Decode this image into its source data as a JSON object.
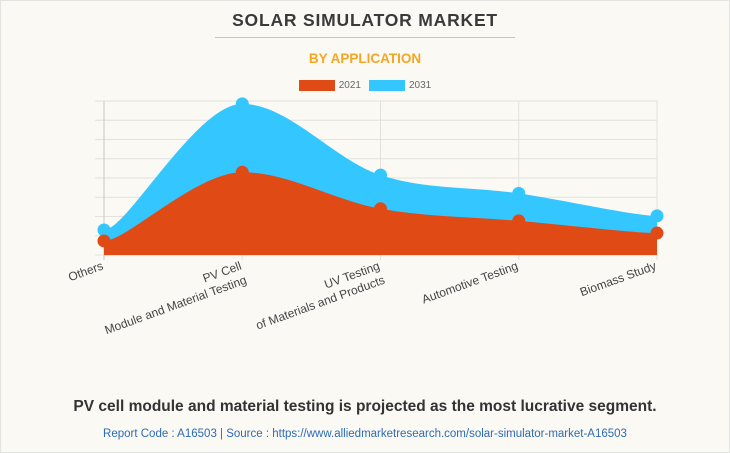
{
  "header": {
    "title": "SOLAR SIMULATOR MARKET",
    "subtitle": "BY APPLICATION"
  },
  "legend": [
    {
      "label": "2021",
      "color": "#e04a14"
    },
    {
      "label": "2031",
      "color": "#33c6ff"
    }
  ],
  "chart_data": {
    "type": "area",
    "title": "SOLAR SIMULATOR MARKET",
    "subtitle": "BY APPLICATION",
    "xlabel": "",
    "ylabel": "",
    "categories": [
      [
        "Others"
      ],
      [
        "PV Cell",
        "Module and Material Testing"
      ],
      [
        "UV Testing",
        "of Materials and Products"
      ],
      [
        "Automotive Testing"
      ],
      [
        "Biomass Study"
      ]
    ],
    "series": [
      {
        "name": "2031",
        "color": "#33c6ff",
        "values": [
          1.3,
          7.85,
          4.15,
          3.2,
          2.03
        ]
      },
      {
        "name": "2021",
        "color": "#e04a14",
        "values": [
          0.73,
          4.3,
          2.4,
          1.77,
          1.14
        ]
      }
    ],
    "ylim": [
      0,
      8
    ],
    "y_gridlines": 8,
    "y_tick_labels_visible": false,
    "grid": true,
    "smooth": true,
    "legend_position": "top-center"
  },
  "footer": {
    "caption": "PV cell module and material testing is projected as the most lucrative segment.",
    "source": "Report Code : A16503  |  Source : https://www.alliedmarketresearch.com/solar-simulator-market-A16503"
  }
}
